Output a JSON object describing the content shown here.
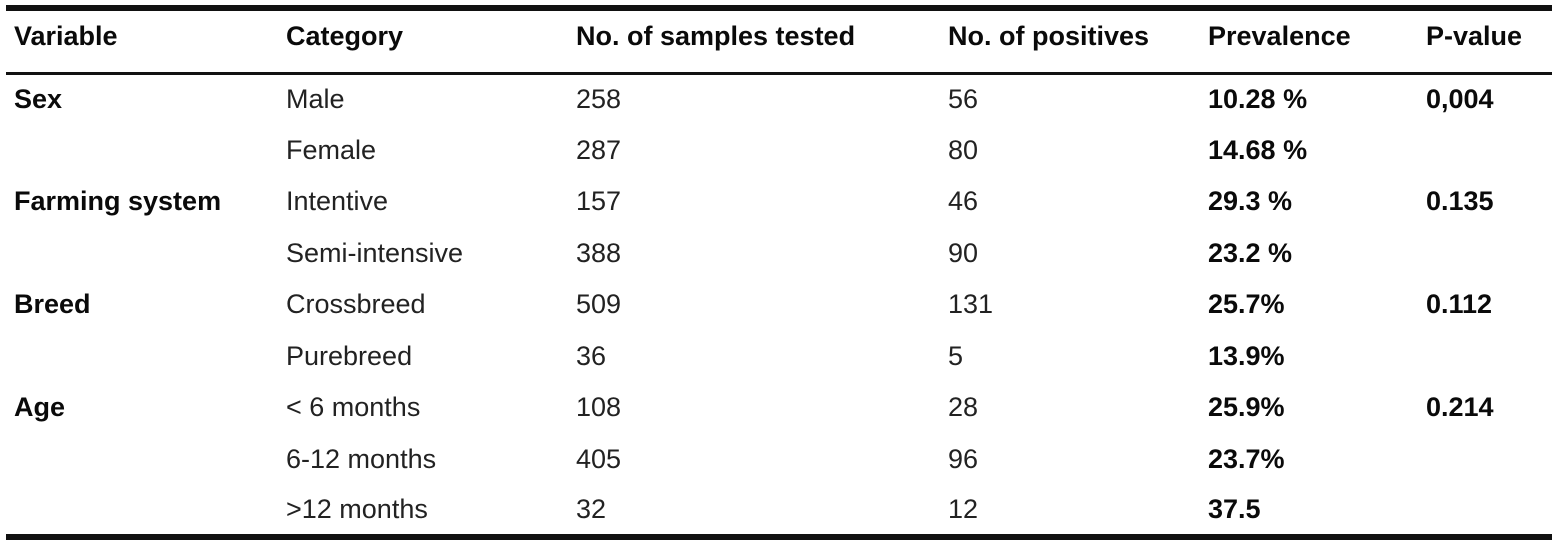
{
  "table": {
    "columns": [
      {
        "key": "variable",
        "label": "Variable"
      },
      {
        "key": "category",
        "label": "Category"
      },
      {
        "key": "samples",
        "label": "No. of samples tested"
      },
      {
        "key": "positives",
        "label": "No. of positives"
      },
      {
        "key": "prevalence",
        "label": "Prevalence"
      },
      {
        "key": "pvalue",
        "label": "P-value"
      }
    ],
    "rows": [
      {
        "variable": "Sex",
        "category": "Male",
        "samples": "258",
        "positives": "56",
        "prevalence": "10.28 %",
        "pvalue": "0,004"
      },
      {
        "variable": "",
        "category": "Female",
        "samples": "287",
        "positives": "80",
        "prevalence": "14.68 %",
        "pvalue": ""
      },
      {
        "variable": "Farming system",
        "category": "Intentive",
        "samples": "157",
        "positives": "46",
        "prevalence": "29.3 %",
        "pvalue": "0.135"
      },
      {
        "variable": "",
        "category": "Semi-intensive",
        "samples": "388",
        "positives": "90",
        "prevalence": "23.2 %",
        "pvalue": ""
      },
      {
        "variable": "Breed",
        "category": "Crossbreed",
        "samples": "509",
        "positives": "131",
        "prevalence": "25.7%",
        "pvalue": "0.112"
      },
      {
        "variable": "",
        "category": "Purebreed",
        "samples": "36",
        "positives": "5",
        "prevalence": "13.9%",
        "pvalue": ""
      },
      {
        "variable": "Age",
        "category": "< 6 months",
        "samples": "108",
        "positives": "28",
        "prevalence": "25.9%",
        "pvalue": "0.214"
      },
      {
        "variable": "",
        "category": "6-12 months",
        "samples": "405",
        "positives": "96",
        "prevalence": "23.7%",
        "pvalue": ""
      },
      {
        "variable": "",
        "category": ">12 months",
        "samples": "32",
        "positives": "12",
        "prevalence": "37.5",
        "pvalue": ""
      }
    ]
  },
  "colors": {
    "text_regular": "#222222",
    "text_bold": "#0a0a0a",
    "rule": "#111111",
    "background": "#ffffff"
  }
}
